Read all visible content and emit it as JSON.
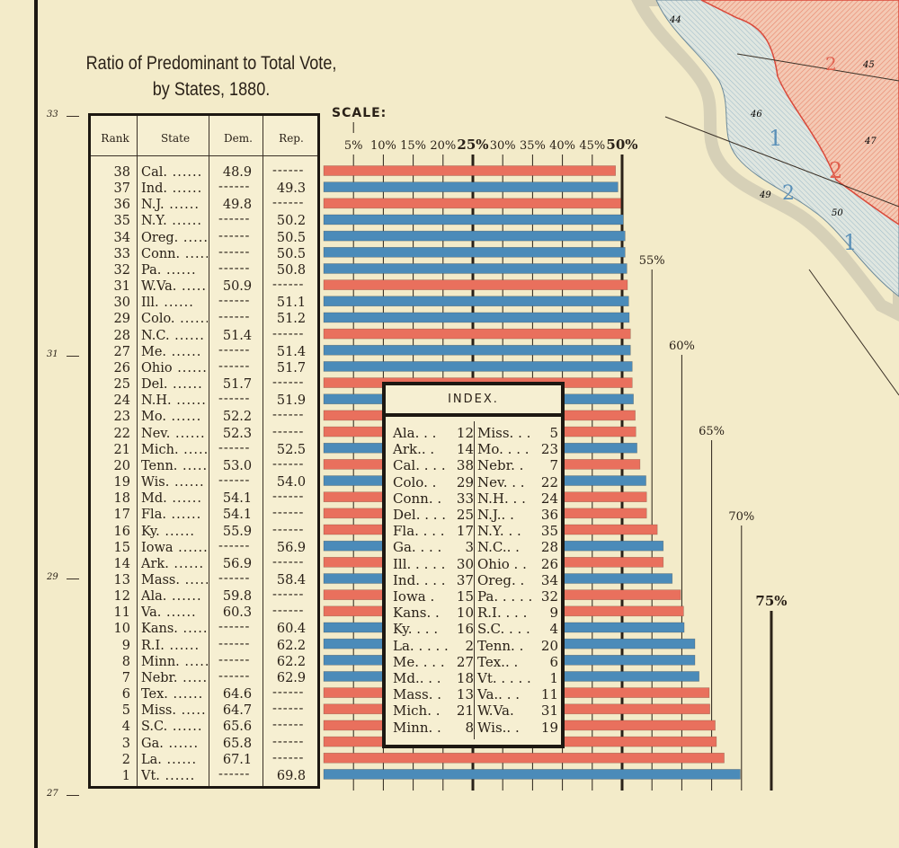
{
  "title_line1": "Ratio of Predominant to Total Vote,",
  "title_line2": "by States, 1880.",
  "colors": {
    "democratic": "#e9705d",
    "republican": "#4b8bb9",
    "background": "#f3ebc9"
  },
  "latitudes": [
    "33",
    "31",
    "29",
    "27"
  ],
  "table_headers": {
    "rank": "Rank",
    "state": "State",
    "dem": "Dem.",
    "rep": "Rep."
  },
  "chart_data": {
    "type": "bar",
    "orientation": "horizontal",
    "title": "Ratio of Predominant to Total Vote, by States, 1880.",
    "scale_label": "SCALE:",
    "xlim": [
      0,
      75
    ],
    "ticks": [
      "5%",
      "10%",
      "15%",
      "20%",
      "25%",
      "30%",
      "35%",
      "40%",
      "45%",
      "50%",
      "55%",
      "60%",
      "65%",
      "70%",
      "75%"
    ],
    "tick_values": [
      5,
      10,
      15,
      20,
      25,
      30,
      35,
      40,
      45,
      50,
      55,
      60,
      65,
      70,
      75
    ],
    "rows": [
      {
        "rank": "38",
        "state": "Cal.",
        "dem": "48.9",
        "rep": "",
        "value": 48.9,
        "party": "dem"
      },
      {
        "rank": "37",
        "state": "Ind.",
        "dem": "",
        "rep": "49.3",
        "value": 49.3,
        "party": "rep"
      },
      {
        "rank": "36",
        "state": "N.J.",
        "dem": "49.8",
        "rep": "",
        "value": 49.8,
        "party": "dem"
      },
      {
        "rank": "35",
        "state": "N.Y.",
        "dem": "",
        "rep": "50.2",
        "value": 50.2,
        "party": "rep"
      },
      {
        "rank": "34",
        "state": "Oreg.",
        "dem": "",
        "rep": "50.5",
        "value": 50.5,
        "party": "rep"
      },
      {
        "rank": "33",
        "state": "Conn.",
        "dem": "",
        "rep": "50.5",
        "value": 50.5,
        "party": "rep"
      },
      {
        "rank": "32",
        "state": "Pa.",
        "dem": "",
        "rep": "50.8",
        "value": 50.8,
        "party": "rep"
      },
      {
        "rank": "31",
        "state": "W.Va.",
        "dem": "50.9",
        "rep": "",
        "value": 50.9,
        "party": "dem"
      },
      {
        "rank": "30",
        "state": "Ill.",
        "dem": "",
        "rep": "51.1",
        "value": 51.1,
        "party": "rep"
      },
      {
        "rank": "29",
        "state": "Colo.",
        "dem": "",
        "rep": "51.2",
        "value": 51.2,
        "party": "rep"
      },
      {
        "rank": "28",
        "state": "N.C.",
        "dem": "51.4",
        "rep": "",
        "value": 51.4,
        "party": "dem"
      },
      {
        "rank": "27",
        "state": "Me.",
        "dem": "",
        "rep": "51.4",
        "value": 51.4,
        "party": "rep"
      },
      {
        "rank": "26",
        "state": "Ohio",
        "dem": "",
        "rep": "51.7",
        "value": 51.7,
        "party": "rep"
      },
      {
        "rank": "25",
        "state": "Del.",
        "dem": "51.7",
        "rep": "",
        "value": 51.7,
        "party": "dem"
      },
      {
        "rank": "24",
        "state": "N.H.",
        "dem": "",
        "rep": "51.9",
        "value": 51.9,
        "party": "rep"
      },
      {
        "rank": "23",
        "state": "Mo.",
        "dem": "52.2",
        "rep": "",
        "value": 52.2,
        "party": "dem"
      },
      {
        "rank": "22",
        "state": "Nev.",
        "dem": "52.3",
        "rep": "",
        "value": 52.3,
        "party": "dem"
      },
      {
        "rank": "21",
        "state": "Mich.",
        "dem": "",
        "rep": "52.5",
        "value": 52.5,
        "party": "rep"
      },
      {
        "rank": "20",
        "state": "Tenn.",
        "dem": "53.0",
        "rep": "",
        "value": 53.0,
        "party": "dem"
      },
      {
        "rank": "19",
        "state": "Wis.",
        "dem": "",
        "rep": "54.0",
        "value": 54.0,
        "party": "rep"
      },
      {
        "rank": "18",
        "state": "Md.",
        "dem": "54.1",
        "rep": "",
        "value": 54.1,
        "party": "dem"
      },
      {
        "rank": "17",
        "state": "Fla.",
        "dem": "54.1",
        "rep": "",
        "value": 54.1,
        "party": "dem"
      },
      {
        "rank": "16",
        "state": "Ky.",
        "dem": "55.9",
        "rep": "",
        "value": 55.9,
        "party": "dem"
      },
      {
        "rank": "15",
        "state": "Iowa",
        "dem": "",
        "rep": "56.9",
        "value": 56.9,
        "party": "rep"
      },
      {
        "rank": "14",
        "state": "Ark.",
        "dem": "56.9",
        "rep": "",
        "value": 56.9,
        "party": "dem"
      },
      {
        "rank": "13",
        "state": "Mass.",
        "dem": "",
        "rep": "58.4",
        "value": 58.4,
        "party": "rep"
      },
      {
        "rank": "12",
        "state": "Ala.",
        "dem": "59.8",
        "rep": "",
        "value": 59.8,
        "party": "dem"
      },
      {
        "rank": "11",
        "state": "Va.",
        "dem": "60.3",
        "rep": "",
        "value": 60.3,
        "party": "dem"
      },
      {
        "rank": "10",
        "state": "Kans.",
        "dem": "",
        "rep": "60.4",
        "value": 60.4,
        "party": "rep"
      },
      {
        "rank": "9",
        "state": "R.I.",
        "dem": "",
        "rep": "62.2",
        "value": 62.2,
        "party": "rep"
      },
      {
        "rank": "8",
        "state": "Minn.",
        "dem": "",
        "rep": "62.2",
        "value": 62.2,
        "party": "rep"
      },
      {
        "rank": "7",
        "state": "Nebr.",
        "dem": "",
        "rep": "62.9",
        "value": 62.9,
        "party": "rep"
      },
      {
        "rank": "6",
        "state": "Tex.",
        "dem": "64.6",
        "rep": "",
        "value": 64.6,
        "party": "dem"
      },
      {
        "rank": "5",
        "state": "Miss.",
        "dem": "64.7",
        "rep": "",
        "value": 64.7,
        "party": "dem"
      },
      {
        "rank": "4",
        "state": "S.C.",
        "dem": "65.6",
        "rep": "",
        "value": 65.6,
        "party": "dem"
      },
      {
        "rank": "3",
        "state": "Ga.",
        "dem": "65.8",
        "rep": "",
        "value": 65.8,
        "party": "dem"
      },
      {
        "rank": "2",
        "state": "La.",
        "dem": "67.1",
        "rep": "",
        "value": 67.1,
        "party": "dem"
      },
      {
        "rank": "1",
        "state": "Vt.",
        "dem": "",
        "rep": "69.8",
        "value": 69.8,
        "party": "rep"
      }
    ]
  },
  "index": {
    "title": "INDEX.",
    "left": [
      [
        "Ala. . .",
        "12"
      ],
      [
        "Ark.. .",
        "14"
      ],
      [
        "Cal. . . .",
        "38"
      ],
      [
        "Colo. .",
        "29"
      ],
      [
        "Conn. .",
        "33"
      ],
      [
        "Del. . . .",
        "25"
      ],
      [
        "Fla. . . .",
        "17"
      ],
      [
        "Ga. . . .",
        "3"
      ],
      [
        "Ill. . . . .",
        "30"
      ],
      [
        "Ind. . . .",
        "37"
      ],
      [
        "Iowa .",
        "15"
      ],
      [
        "Kans. .",
        "10"
      ],
      [
        "Ky. . . .",
        "16"
      ],
      [
        "La. . . . .",
        "2"
      ],
      [
        "Me. . . .",
        "27"
      ],
      [
        "Md.. . .",
        "18"
      ],
      [
        "Mass. .",
        "13"
      ],
      [
        "Mich. .",
        "21"
      ],
      [
        "Minn. .",
        "8"
      ]
    ],
    "right": [
      [
        "Miss. . .",
        "5"
      ],
      [
        "Mo. . . .",
        "23"
      ],
      [
        "Nebr. .",
        "7"
      ],
      [
        "Nev. . .",
        "22"
      ],
      [
        "N.H. . .",
        "24"
      ],
      [
        "N.J.. .",
        "36"
      ],
      [
        "N.Y. . .",
        "35"
      ],
      [
        "N.C.. .",
        "28"
      ],
      [
        "Ohio . .",
        "26"
      ],
      [
        "Oreg. .",
        "34"
      ],
      [
        "Pa. . . . .",
        "32"
      ],
      [
        "R.I. . . .",
        "9"
      ],
      [
        "S.C. . . .",
        "4"
      ],
      [
        "Tenn. .",
        "20"
      ],
      [
        "Tex.. .",
        "6"
      ],
      [
        "Vt. . . . .",
        "1"
      ],
      [
        "Va.. . .",
        "11"
      ],
      [
        "W.Va.",
        "31"
      ],
      [
        "Wis.. .",
        "19"
      ]
    ]
  },
  "map": {
    "region_numbers": [
      "44",
      "45",
      "46",
      "47",
      "49",
      "50"
    ],
    "zone_labels": [
      "1",
      "2",
      "1",
      "2",
      "2",
      "1"
    ]
  }
}
